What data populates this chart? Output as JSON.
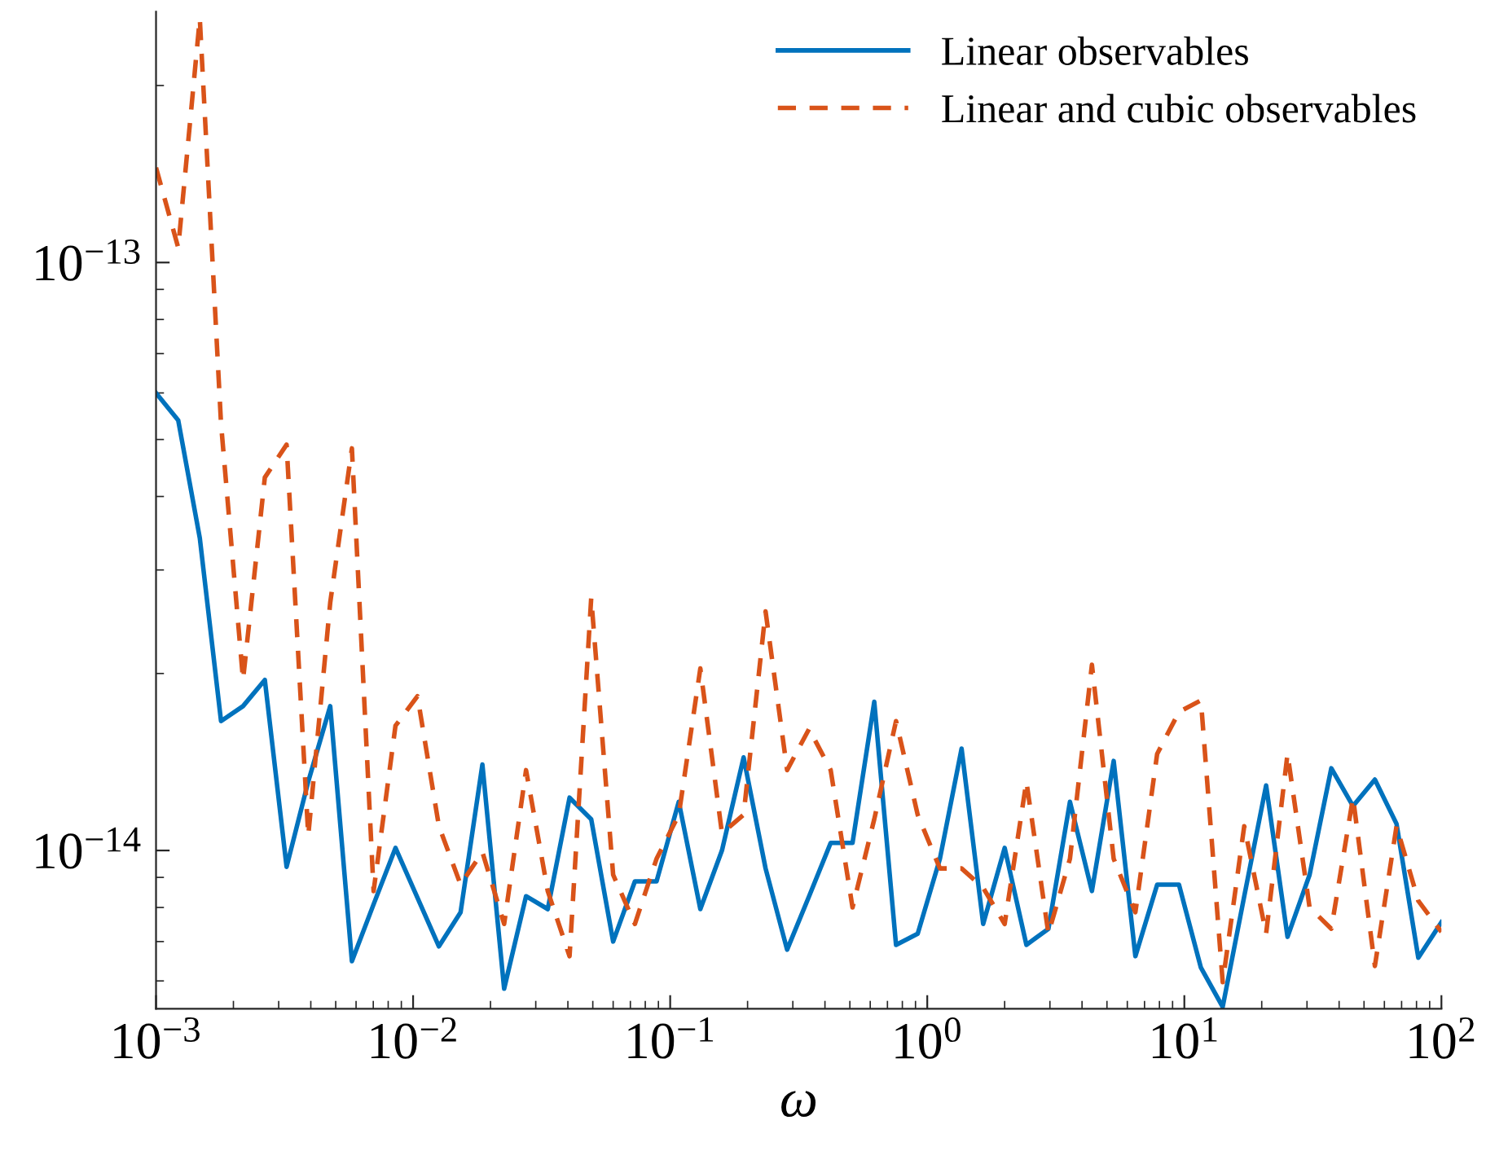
{
  "chart_data": {
    "type": "line",
    "xlabel": "ω",
    "log": "xy",
    "grid": false,
    "legend": "top right",
    "marker": "none",
    "x": [
      0.001,
      0.00122,
      0.00148,
      0.00179,
      0.00218,
      0.00265,
      0.00322,
      0.00391,
      0.00476,
      0.00578,
      0.00702,
      0.00854,
      0.0104,
      0.0126,
      0.0153,
      0.0186,
      0.0226,
      0.0275,
      0.0334,
      0.0406,
      0.0493,
      0.06,
      0.0729,
      0.0885,
      0.108,
      0.131,
      0.159,
      0.193,
      0.235,
      0.285,
      0.347,
      0.421,
      0.512,
      0.622,
      0.756,
      0.918,
      1.12,
      1.36,
      1.65,
      2.0,
      2.43,
      2.96,
      3.59,
      4.37,
      5.31,
      6.45,
      7.84,
      9.53,
      11.6,
      14.1,
      17.1,
      20.8,
      25.2,
      30.7,
      37.3,
      45.3,
      55.1,
      66.9,
      81.3,
      100
    ],
    "xlim": [
      0.001,
      100
    ],
    "xticks": [
      {
        "value": 0.001,
        "label": "10$^{−3}$"
      },
      {
        "value": 0.01,
        "label": "10$^{−2}$"
      },
      {
        "value": 0.1,
        "label": "10$^{−1}$"
      },
      {
        "value": 1,
        "label": "10$^{0}$"
      },
      {
        "value": 10,
        "label": "10$^{1}$"
      },
      {
        "value": 100,
        "label": "10$^{2}$"
      }
    ],
    "ylim": [
      5.38e-15,
      2.67e-13
    ],
    "yticks": [
      {
        "value": 1e-14,
        "label": "10$^{−14}$"
      },
      {
        "value": 1e-13,
        "label": "10$^{−13}$"
      }
    ],
    "series": [
      {
        "name": "Linear observables",
        "color": "#0072bd",
        "line_style": "solid",
        "values": [
          6e-14,
          5.39e-14,
          3.4e-14,
          1.66e-14,
          1.76e-14,
          1.95e-14,
          9.38e-15,
          1.31e-14,
          1.76e-14,
          6.48e-15,
          8.1e-15,
          1.01e-14,
          8.31e-15,
          6.87e-15,
          7.85e-15,
          1.4e-14,
          5.82e-15,
          8.36e-15,
          7.95e-15,
          1.23e-14,
          1.13e-14,
          7e-15,
          8.86e-15,
          8.86e-15,
          1.21e-14,
          7.95e-15,
          1e-14,
          1.44e-14,
          9.32e-15,
          6.78e-15,
          8.36e-15,
          1.03e-14,
          1.03e-14,
          1.79e-14,
          6.91e-15,
          7.22e-15,
          9.68e-15,
          1.49e-14,
          7.5e-15,
          1.01e-14,
          6.91e-15,
          7.36e-15,
          1.21e-14,
          8.53e-15,
          1.42e-14,
          6.61e-15,
          8.75e-15,
          8.75e-15,
          6.32e-15,
          5.42e-15,
          8.36e-15,
          1.29e-14,
          7.13e-15,
          9.09e-15,
          1.38e-14,
          1.19e-14,
          1.32e-14,
          1.11e-14,
          6.57e-15,
          7.55e-15
        ]
      },
      {
        "name": "Linear and cubic observables",
        "color": "#d95319",
        "line_style": "dashed",
        "values": [
          1.45e-13,
          1.06e-13,
          2.6e-13,
          5.32e-14,
          1.95e-14,
          4.31e-14,
          4.9e-14,
          1.06e-14,
          2.64e-14,
          4.83e-14,
          8.53e-15,
          1.63e-14,
          1.83e-14,
          1.1e-14,
          8.75e-15,
          9.94e-15,
          7.5e-15,
          1.37e-14,
          8.53e-15,
          6.61e-15,
          2.69e-14,
          9.09e-15,
          7.5e-15,
          9.68e-15,
          1.15e-14,
          2.04e-14,
          1.07e-14,
          1.15e-14,
          2.55e-14,
          1.37e-14,
          1.61e-14,
          1.37e-14,
          8e-15,
          1.13e-14,
          1.66e-14,
          1.15e-14,
          9.32e-15,
          9.32e-15,
          8.64e-15,
          7.5e-15,
          1.31e-14,
          7.22e-15,
          9.68e-15,
          2.07e-14,
          9.68e-15,
          7.85e-15,
          1.46e-14,
          1.72e-14,
          1.8e-14,
          5.97e-15,
          1.1e-14,
          7.22e-15,
          1.46e-14,
          8e-15,
          7.36e-15,
          1.23e-14,
          6.36e-15,
          1.1e-14,
          8.21e-15,
          7.27e-15
        ]
      }
    ]
  }
}
